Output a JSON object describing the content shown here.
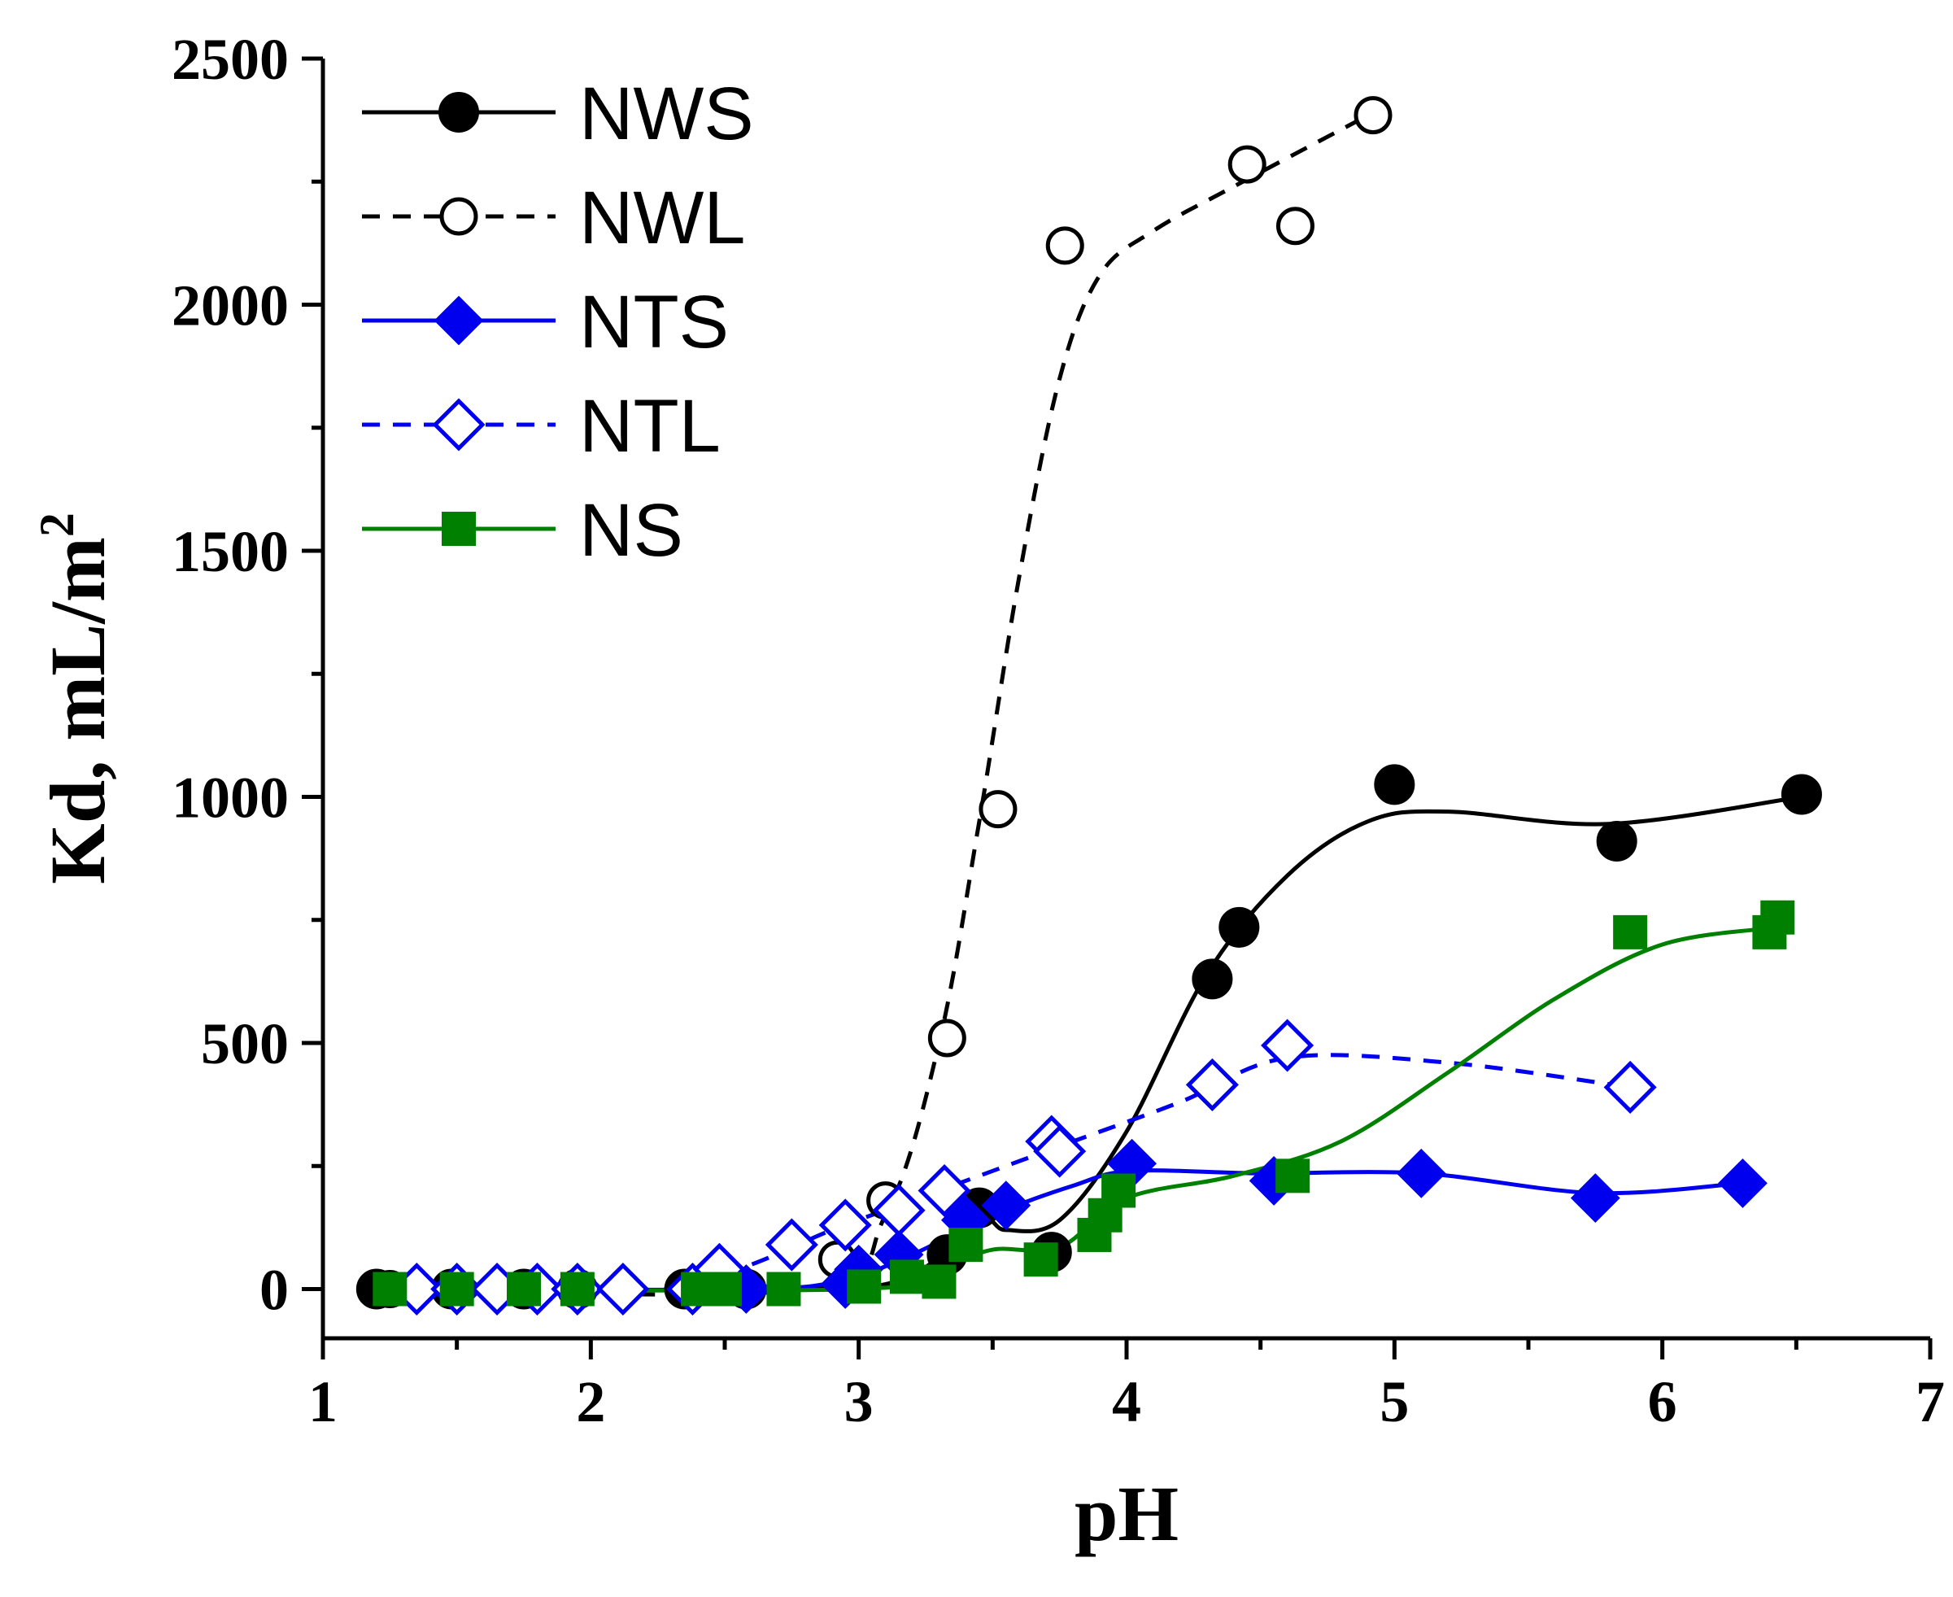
{
  "chart_data": {
    "type": "scatter",
    "title": "",
    "xlabel": "pH",
    "ylabel_main": "Kd, mL/m",
    "ylabel_sup": "2",
    "xlim": [
      1,
      7
    ],
    "ylim": [
      -100,
      2500
    ],
    "xticks": [
      1,
      2,
      3,
      4,
      5,
      6,
      7
    ],
    "yticks": [
      0,
      500,
      1000,
      1500,
      2000,
      2500
    ],
    "grid": false,
    "legend_position": "top-left",
    "series": [
      {
        "name": "NWS",
        "color": "#000000",
        "marker": "circle",
        "filled": true,
        "dashed": false,
        "x": [
          1.2,
          1.48,
          1.75,
          1.95,
          2.35,
          2.58,
          3.33,
          3.45,
          3.72,
          4.32,
          4.42,
          5.0,
          5.83,
          6.52
        ],
        "y": [
          0,
          0,
          0,
          0,
          0,
          0,
          70,
          165,
          75,
          630,
          735,
          1025,
          910,
          1005
        ],
        "fit": [
          [
            1.2,
            0
          ],
          [
            2.8,
            0
          ],
          [
            3.2,
            30
          ],
          [
            3.45,
            140
          ],
          [
            3.55,
            120
          ],
          [
            3.75,
            140
          ],
          [
            4.0,
            320
          ],
          [
            4.3,
            640
          ],
          [
            4.6,
            840
          ],
          [
            4.9,
            950
          ],
          [
            5.2,
            970
          ],
          [
            5.8,
            945
          ],
          [
            6.52,
            1000
          ]
        ]
      },
      {
        "name": "NWL",
        "color": "#000000",
        "marker": "circle",
        "filled": false,
        "dashed": true,
        "x": [
          1.25,
          1.5,
          1.75,
          1.95,
          2.45,
          2.92,
          3.1,
          3.33,
          3.52,
          3.77,
          4.45,
          4.63,
          4.92
        ],
        "y": [
          0,
          0,
          0,
          0,
          10,
          60,
          180,
          510,
          975,
          2120,
          2285,
          2160,
          2385
        ],
        "fit": [
          [
            1.25,
            0
          ],
          [
            2.8,
            0
          ],
          [
            3.1,
            150
          ],
          [
            3.3,
            500
          ],
          [
            3.45,
            950
          ],
          [
            3.6,
            1450
          ],
          [
            3.75,
            1850
          ],
          [
            3.9,
            2060
          ],
          [
            4.1,
            2150
          ],
          [
            4.4,
            2240
          ],
          [
            4.92,
            2390
          ]
        ]
      },
      {
        "name": "NTS",
        "color": "#0000ee",
        "marker": "diamond",
        "filled": true,
        "dashed": false,
        "x": [
          1.35,
          1.5,
          1.65,
          1.8,
          1.95,
          2.12,
          2.38,
          2.58,
          2.95,
          3.0,
          3.15,
          3.4,
          3.55,
          4.02,
          4.55,
          5.1,
          5.75,
          6.3
        ],
        "y": [
          0,
          0,
          0,
          0,
          0,
          0,
          0,
          0,
          10,
          40,
          70,
          140,
          170,
          255,
          220,
          235,
          185,
          215
        ],
        "fit": [
          [
            1.35,
            0
          ],
          [
            2.6,
            0
          ],
          [
            2.95,
            20
          ],
          [
            3.2,
            70
          ],
          [
            3.5,
            150
          ],
          [
            3.8,
            210
          ],
          [
            4.02,
            240
          ],
          [
            4.5,
            235
          ],
          [
            5.1,
            235
          ],
          [
            5.75,
            195
          ],
          [
            6.3,
            215
          ]
        ]
      },
      {
        "name": "NTL",
        "color": "#0000ee",
        "marker": "diamond",
        "filled": false,
        "dashed": true,
        "x": [
          1.35,
          1.5,
          1.65,
          1.8,
          1.95,
          2.12,
          2.38,
          2.48,
          2.75,
          2.95,
          3.15,
          3.32,
          3.72,
          3.75,
          4.32,
          4.6,
          5.88
        ],
        "y": [
          0,
          0,
          0,
          0,
          0,
          0,
          0,
          40,
          90,
          130,
          160,
          200,
          300,
          280,
          415,
          495,
          410
        ],
        "fit": [
          [
            1.35,
            0
          ],
          [
            2.3,
            0
          ],
          [
            2.6,
            50
          ],
          [
            2.9,
            120
          ],
          [
            3.2,
            180
          ],
          [
            3.5,
            240
          ],
          [
            3.8,
            300
          ],
          [
            4.2,
            380
          ],
          [
            4.6,
            470
          ],
          [
            5.2,
            460
          ],
          [
            5.88,
            410
          ]
        ]
      },
      {
        "name": "NS",
        "color": "#008000",
        "marker": "square",
        "filled": true,
        "dashed": false,
        "x": [
          1.25,
          1.5,
          1.75,
          1.95,
          2.4,
          2.5,
          2.72,
          3.02,
          3.18,
          3.3,
          3.4,
          3.68,
          3.88,
          3.92,
          3.97,
          4.62,
          5.88,
          6.4,
          6.43
        ],
        "y": [
          0,
          0,
          0,
          0,
          0,
          0,
          0,
          5,
          25,
          15,
          90,
          60,
          110,
          150,
          200,
          230,
          725,
          725,
          755
        ],
        "fit": [
          [
            1.25,
            0
          ],
          [
            3.0,
            0
          ],
          [
            3.3,
            40
          ],
          [
            3.5,
            80
          ],
          [
            3.75,
            85
          ],
          [
            4.0,
            185
          ],
          [
            4.4,
            230
          ],
          [
            4.8,
            300
          ],
          [
            5.2,
            440
          ],
          [
            5.6,
            590
          ],
          [
            6.0,
            700
          ],
          [
            6.43,
            735
          ]
        ]
      }
    ]
  }
}
